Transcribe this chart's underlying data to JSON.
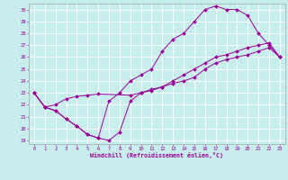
{
  "xlabel": "Windchill (Refroidissement éolien,°C)",
  "bg_color": "#c8eded",
  "line_color": "#990099",
  "grid_color": "#ffffff",
  "xlim_min": -0.5,
  "xlim_max": 23.5,
  "ylim_min": 18.7,
  "ylim_max": 30.5,
  "yticks": [
    19,
    20,
    21,
    22,
    23,
    24,
    25,
    26,
    27,
    28,
    29,
    30
  ],
  "xticks": [
    0,
    1,
    2,
    3,
    4,
    5,
    6,
    7,
    8,
    9,
    10,
    11,
    12,
    13,
    14,
    15,
    16,
    17,
    18,
    19,
    20,
    21,
    22,
    23
  ],
  "line1_x": [
    0,
    1,
    2,
    3,
    4,
    5,
    6,
    7,
    8,
    9,
    10,
    11,
    12,
    13,
    14,
    15,
    16,
    17,
    18,
    19,
    20,
    21,
    22,
    23
  ],
  "line1_y": [
    23.0,
    21.8,
    21.5,
    20.8,
    20.2,
    19.5,
    19.2,
    19.0,
    19.7,
    22.3,
    23.0,
    23.3,
    23.5,
    24.0,
    24.5,
    25.0,
    25.5,
    26.0,
    26.2,
    26.5,
    26.8,
    27.0,
    27.2,
    26.0
  ],
  "line2_x": [
    0,
    1,
    2,
    3,
    4,
    5,
    6,
    7,
    8,
    9,
    10,
    11,
    12,
    13,
    14,
    15,
    16,
    17,
    18,
    19,
    20,
    21,
    22,
    23
  ],
  "line2_y": [
    23.0,
    21.8,
    21.5,
    20.8,
    20.2,
    19.5,
    19.2,
    22.3,
    23.0,
    24.0,
    24.5,
    25.0,
    26.5,
    27.5,
    28.0,
    29.0,
    30.0,
    30.3,
    30.0,
    30.0,
    29.5,
    28.0,
    27.0,
    26.0
  ],
  "line3_x": [
    0,
    1,
    2,
    3,
    4,
    5,
    6,
    9,
    10,
    11,
    12,
    13,
    14,
    15,
    16,
    17,
    18,
    19,
    20,
    21,
    22,
    23
  ],
  "line3_y": [
    23.0,
    21.8,
    22.0,
    22.5,
    22.7,
    22.8,
    22.9,
    22.8,
    23.0,
    23.2,
    23.5,
    23.8,
    24.0,
    24.3,
    25.0,
    25.5,
    25.8,
    26.0,
    26.2,
    26.5,
    26.8,
    26.0
  ]
}
